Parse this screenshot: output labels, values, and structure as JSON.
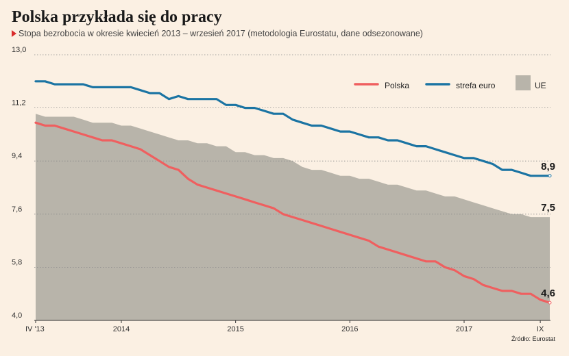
{
  "title": "Polska przykłada się do pracy",
  "subtitle": "Stopa bezrobocia w okresie kwiecień 2013 – wrzesień 2017 (metodologia Eurostatu, dane odsezonowane)",
  "source": "Źródło: Eurostat",
  "colors": {
    "background": "#fbf0e3",
    "polska": "#ef5f5f",
    "strefa_euro": "#1b74a3",
    "ue": "#b8b4aa",
    "marker": "#d92b2b"
  },
  "chart_data": {
    "type": "line",
    "title": "Polska przykłada się do pracy",
    "subtitle": "Stopa bezrobocia w okresie kwiecień 2013 – wrzesień 2017 (metodologia Eurostatu, dane odsezonowane)",
    "ylim": [
      4.0,
      13.0
    ],
    "yticks": [
      "13,0",
      "11,2",
      "9,4",
      "7,6",
      "5,8",
      "4,0"
    ],
    "ytick_values": [
      13.0,
      11.2,
      9.4,
      7.6,
      5.8,
      4.0
    ],
    "xticks": [
      {
        "label": "IV '13",
        "index": 0
      },
      {
        "label": "2014",
        "index": 9
      },
      {
        "label": "2015",
        "index": 21
      },
      {
        "label": "2016",
        "index": 33
      },
      {
        "label": "2017",
        "index": 45
      },
      {
        "label": "IX",
        "index": 53
      }
    ],
    "grid": true,
    "legend_position": "top-right",
    "series": [
      {
        "name": "Polska",
        "type": "line",
        "values": [
          10.7,
          10.6,
          10.6,
          10.5,
          10.4,
          10.3,
          10.2,
          10.1,
          10.1,
          10.0,
          9.9,
          9.8,
          9.6,
          9.4,
          9.2,
          9.1,
          8.8,
          8.6,
          8.5,
          8.4,
          8.3,
          8.2,
          8.1,
          8.0,
          7.9,
          7.8,
          7.6,
          7.5,
          7.4,
          7.3,
          7.2,
          7.1,
          7.0,
          6.9,
          6.8,
          6.7,
          6.5,
          6.4,
          6.3,
          6.2,
          6.1,
          6.0,
          6.0,
          5.8,
          5.7,
          5.5,
          5.4,
          5.2,
          5.1,
          5.0,
          5.0,
          4.9,
          4.9,
          4.7,
          4.6
        ]
      },
      {
        "name": "strefa euro",
        "type": "line",
        "values": [
          12.1,
          12.1,
          12.0,
          12.0,
          12.0,
          12.0,
          11.9,
          11.9,
          11.9,
          11.9,
          11.9,
          11.8,
          11.7,
          11.7,
          11.5,
          11.6,
          11.5,
          11.5,
          11.5,
          11.5,
          11.3,
          11.3,
          11.2,
          11.2,
          11.1,
          11.0,
          11.0,
          10.8,
          10.7,
          10.6,
          10.6,
          10.5,
          10.4,
          10.4,
          10.3,
          10.2,
          10.2,
          10.1,
          10.1,
          10.0,
          9.9,
          9.9,
          9.8,
          9.7,
          9.6,
          9.5,
          9.5,
          9.4,
          9.3,
          9.1,
          9.1,
          9.0,
          8.9,
          8.9,
          8.9
        ]
      },
      {
        "name": "UE",
        "type": "area",
        "values": [
          11.0,
          10.9,
          10.9,
          10.9,
          10.9,
          10.8,
          10.7,
          10.7,
          10.7,
          10.6,
          10.6,
          10.5,
          10.4,
          10.3,
          10.2,
          10.1,
          10.1,
          10.0,
          10.0,
          9.9,
          9.9,
          9.7,
          9.7,
          9.6,
          9.6,
          9.5,
          9.5,
          9.4,
          9.2,
          9.1,
          9.1,
          9.0,
          8.9,
          8.9,
          8.8,
          8.8,
          8.7,
          8.6,
          8.6,
          8.5,
          8.4,
          8.4,
          8.3,
          8.2,
          8.2,
          8.1,
          8.0,
          7.9,
          7.8,
          7.7,
          7.6,
          7.6,
          7.5,
          7.5,
          7.5
        ]
      }
    ],
    "end_labels": [
      {
        "series": "strefa euro",
        "text": "8,9"
      },
      {
        "series": "UE",
        "text": "7,5"
      },
      {
        "series": "Polska",
        "text": "4,6"
      }
    ]
  }
}
